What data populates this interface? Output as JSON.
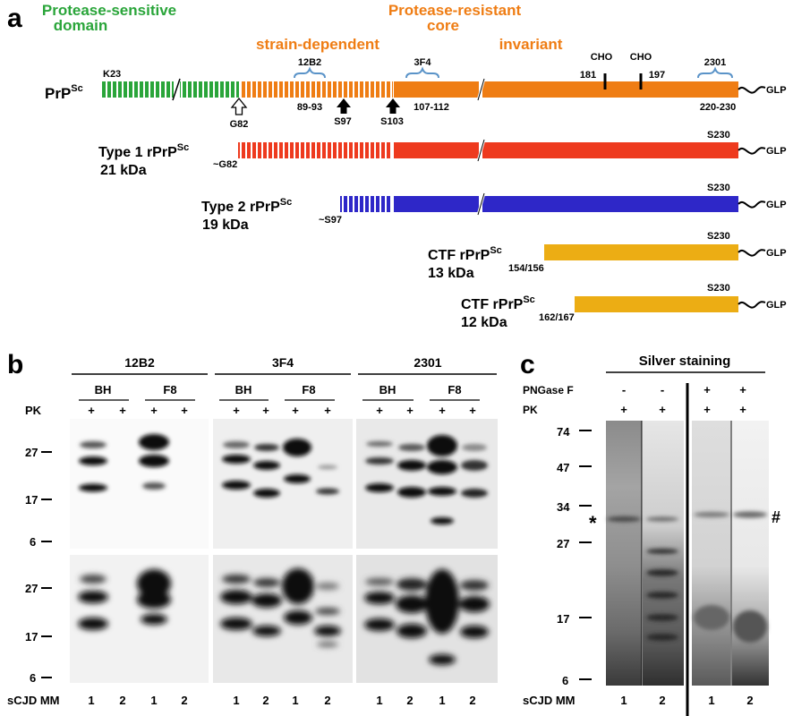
{
  "panel_a": {
    "label": "a",
    "headers": {
      "sensitive": [
        "Protease-sensitive",
        "domain"
      ],
      "resistant": [
        "Protease-resistant",
        "core"
      ],
      "strain_dependent": "strain-dependent",
      "invariant": "invariant"
    },
    "antibodies": {
      "ab1": "12B2",
      "ab2": "3F4",
      "ab3": "2301"
    },
    "epitopes": {
      "ab1": "89-93",
      "ab2": "107-112",
      "ab3": "220-230"
    },
    "cho": {
      "label1": "CHO",
      "label2": "CHO",
      "pos1": "181",
      "pos2": "197"
    },
    "prpsc": {
      "name": "PrP",
      "sup": "Sc",
      "start": "K23"
    },
    "sites": {
      "g82": "G82",
      "s97": "S97",
      "s103": "S103"
    },
    "glp": "GLP",
    "fragments": [
      {
        "name": "Type 1  rPrP",
        "sup": "Sc",
        "size": "21 kDa",
        "start": "~G82",
        "end": "S230",
        "color": "#ee3a1e"
      },
      {
        "name": "Type 2  rPrP",
        "sup": "Sc",
        "size": "19 kDa",
        "start": "~S97",
        "end": "S230",
        "color": "#2e27c8"
      },
      {
        "name": "CTF  rPrP",
        "sup": "Sc",
        "size": "13 kDa",
        "start": "154/156",
        "end": "S230",
        "color": "#ecad14"
      },
      {
        "name": "CTF  rPrP",
        "sup": "Sc",
        "size": "12 kDa",
        "start": "162/167",
        "end": "S230",
        "color": "#ecad14"
      }
    ],
    "colors": {
      "green": "#2aa53a",
      "orange": "#ef7d14",
      "bracket": "#5a93c8"
    }
  },
  "panel_b": {
    "label": "b",
    "antibodies": [
      "12B2",
      "3F4",
      "2301"
    ],
    "samples": [
      "BH",
      "F8"
    ],
    "pk_label": "PK",
    "pk_symbol": "+",
    "markers": [
      "27",
      "17",
      "6"
    ],
    "row_label": "sCJD MM",
    "lanes": [
      "1",
      "2",
      "1",
      "2"
    ]
  },
  "panel_c": {
    "label": "c",
    "title": "Silver staining",
    "pngase_label": "PNGase F",
    "pngase": [
      "-",
      "-",
      "+",
      "+"
    ],
    "pk_label": "PK",
    "pk": [
      "+",
      "+",
      "+",
      "+"
    ],
    "markers": [
      "74",
      "47",
      "34",
      "27",
      "17",
      "6"
    ],
    "star": "*",
    "hash": "#",
    "row_label": "sCJD MM",
    "lanes": [
      "1",
      "2",
      "1",
      "2"
    ]
  }
}
